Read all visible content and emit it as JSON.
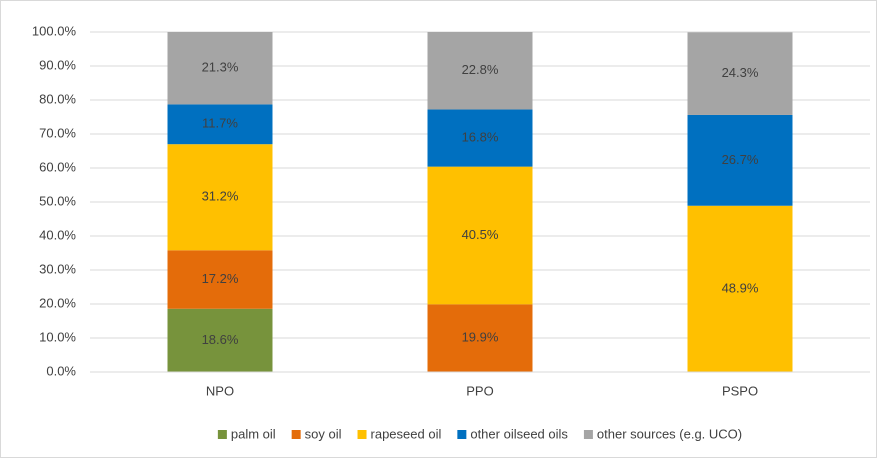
{
  "chart_data": {
    "type": "stacked_bar",
    "categories": [
      "NPO",
      "PPO",
      "PSPO"
    ],
    "series": [
      {
        "name": "palm oil",
        "color": "#77933c",
        "values": [
          18.6,
          null,
          null
        ],
        "value_labels": [
          "18.6%",
          null,
          null
        ]
      },
      {
        "name": "soy oil",
        "color": "#e46c0a",
        "values": [
          17.2,
          19.9,
          null
        ],
        "value_labels": [
          "17.2%",
          "19.9%",
          null
        ]
      },
      {
        "name": "rapeseed oil",
        "color": "#ffc000",
        "values": [
          31.2,
          40.5,
          48.9
        ],
        "value_labels": [
          "31.2%",
          "40.5%",
          "48.9%"
        ]
      },
      {
        "name": "other oilseed oils",
        "color": "#0070c0",
        "values": [
          11.7,
          16.8,
          26.7
        ],
        "value_labels": [
          "11.7%",
          "16.8%",
          "26.7%"
        ]
      },
      {
        "name": "other sources (e.g. UCO)",
        "color": "#a5a5a5",
        "values": [
          21.3,
          22.8,
          24.3
        ],
        "value_labels": [
          "21.3%",
          "22.8%",
          "24.3%"
        ]
      }
    ],
    "ylim": [
      0,
      100
    ],
    "yticks": [
      {
        "value": 0,
        "label": "0.0%"
      },
      {
        "value": 10,
        "label": "10.0%"
      },
      {
        "value": 20,
        "label": "20.0%"
      },
      {
        "value": 30,
        "label": "30.0%"
      },
      {
        "value": 40,
        "label": "40.0%"
      },
      {
        "value": 50,
        "label": "50.0%"
      },
      {
        "value": 60,
        "label": "60.0%"
      },
      {
        "value": 70,
        "label": "70.0%"
      },
      {
        "value": 80,
        "label": "80.0%"
      },
      {
        "value": 90,
        "label": "90.0%"
      },
      {
        "value": 100,
        "label": "100.0%"
      }
    ],
    "grid": true,
    "legend": "bottom"
  }
}
